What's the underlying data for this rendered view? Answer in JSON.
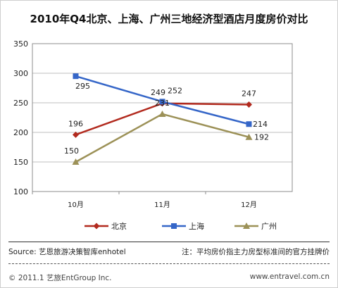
{
  "chart_data": {
    "type": "line",
    "title": "2010年Q4北京、上海、广州三地经济型酒店月度房价对比",
    "categories": [
      "10月",
      "11月",
      "12月"
    ],
    "ylim": [
      100,
      350
    ],
    "yticks": [
      100,
      150,
      200,
      250,
      300,
      350
    ],
    "grid": true,
    "legend_position": "bottom",
    "series": [
      {
        "name": "北京",
        "values": [
          196,
          249,
          247
        ],
        "color": "#b22a1e",
        "marker": "diamond"
      },
      {
        "name": "上海",
        "values": [
          295,
          252,
          214
        ],
        "color": "#3566c8",
        "marker": "square"
      },
      {
        "name": "广州",
        "values": [
          150,
          231,
          192
        ],
        "color": "#9c9157",
        "marker": "triangle"
      }
    ]
  },
  "footer": {
    "source": "Source: 艺恩旅游决策智库enhotel",
    "note": "注：平均房价指主力房型标准间的官方挂牌价",
    "copyright": "© 2011.1 艺旅EntGroup Inc.",
    "website": "www.entravel.com.cn"
  }
}
